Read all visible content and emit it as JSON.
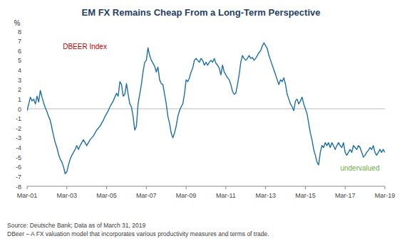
{
  "chart_data": {
    "type": "line",
    "title": "EM FX Remains Cheap From a Long-Term Perspective",
    "y_label": "%",
    "annotations": [
      {
        "text": "DBEER Index",
        "color": "#c00000"
      },
      {
        "text": "undervalued",
        "color": "#70ad47"
      }
    ],
    "source": "Source: Deutsche Bank; Data as of March 31, 2019\nDBeer – A FX valuation model that incorporates various productivity measures and terms of trade.",
    "color": "#1f6fa8",
    "grid": false,
    "ylim": [
      -8,
      8
    ],
    "yticks": [
      -8,
      -7,
      -6,
      -5,
      -4,
      -3,
      -2,
      -1,
      0,
      1,
      2,
      3,
      4,
      5,
      6,
      7,
      8
    ],
    "categories": [
      "Mar-01",
      null,
      null,
      null,
      null,
      null,
      null,
      null,
      null,
      null,
      null,
      null,
      null,
      null,
      null,
      null,
      null,
      null,
      null,
      null,
      null,
      null,
      null,
      null,
      "Mar-03",
      null,
      null,
      null,
      null,
      null,
      null,
      null,
      null,
      null,
      null,
      null,
      null,
      null,
      null,
      null,
      null,
      null,
      null,
      null,
      null,
      null,
      null,
      null,
      "Mar-05",
      null,
      null,
      null,
      null,
      null,
      null,
      null,
      null,
      null,
      null,
      null,
      null,
      null,
      null,
      null,
      null,
      null,
      null,
      null,
      null,
      null,
      null,
      null,
      "Mar-07",
      null,
      null,
      null,
      null,
      null,
      null,
      null,
      null,
      null,
      null,
      null,
      null,
      null,
      null,
      null,
      null,
      null,
      null,
      null,
      null,
      null,
      null,
      null,
      "Mar-09",
      null,
      null,
      null,
      null,
      null,
      null,
      null,
      null,
      null,
      null,
      null,
      null,
      null,
      null,
      null,
      null,
      null,
      null,
      null,
      null,
      null,
      null,
      null,
      "Mar-11",
      null,
      null,
      null,
      null,
      null,
      null,
      null,
      null,
      null,
      null,
      null,
      null,
      null,
      null,
      null,
      null,
      null,
      null,
      null,
      null,
      null,
      null,
      null,
      "Mar-13",
      null,
      null,
      null,
      null,
      null,
      null,
      null,
      null,
      null,
      null,
      null,
      null,
      null,
      null,
      null,
      null,
      null,
      null,
      null,
      null,
      null,
      null,
      null,
      "Mar-15",
      null,
      null,
      null,
      null,
      null,
      null,
      null,
      null,
      null,
      null,
      null,
      null,
      null,
      null,
      null,
      null,
      null,
      null,
      null,
      null,
      null,
      null,
      null,
      "Mar-17",
      null,
      null,
      null,
      null,
      null,
      null,
      null,
      null,
      null,
      null,
      null,
      null,
      null,
      null,
      null,
      null,
      null,
      null,
      null,
      null,
      null,
      null,
      null,
      "Mar-19"
    ],
    "values": [
      -0.2,
      0.5,
      1.2,
      0.8,
      1.0,
      0.5,
      1.3,
      0.7,
      1.9,
      1.2,
      0.6,
      0.1,
      -0.3,
      -0.8,
      -1.2,
      -2.0,
      -2.8,
      -3.5,
      -4.0,
      -4.7,
      -5.2,
      -5.5,
      -6.0,
      -6.7,
      -6.5,
      -5.8,
      -5.2,
      -4.8,
      -4.5,
      -4.2,
      -3.8,
      -4.2,
      -3.8,
      -3.5,
      -3.2,
      -3.5,
      -3.8,
      -3.5,
      -3.2,
      -3.0,
      -2.8,
      -2.5,
      -2.2,
      -2.0,
      -1.8,
      -1.5,
      -1.2,
      -0.8,
      -0.5,
      -0.2,
      0.2,
      0.5,
      0.8,
      1.2,
      1.6,
      1.3,
      2.8,
      2.5,
      1.3,
      1.5,
      2.6,
      1.5,
      0.5,
      0.2,
      -0.8,
      -2.2,
      -1.8,
      0.5,
      1.5,
      2.5,
      3.8,
      4.8,
      5.0,
      6.3,
      5.5,
      5.0,
      4.7,
      4.4,
      3.8,
      4.3,
      3.0,
      2.6,
      2.5,
      1.5,
      0.5,
      -0.8,
      -1.5,
      -2.5,
      -3.0,
      -2.5,
      -1.8,
      -0.8,
      -0.2,
      0.2,
      0.5,
      1.5,
      3.0,
      2.8,
      3.2,
      3.8,
      4.2,
      5.0,
      5.2,
      5.0,
      4.8,
      5.2,
      5.0,
      4.5,
      4.8,
      4.5,
      4.8,
      5.0,
      4.8,
      5.2,
      4.7,
      4.5,
      4.2,
      3.5,
      4.5,
      3.8,
      3.5,
      3.2,
      3.0,
      2.5,
      1.8,
      1.5,
      1.6,
      2.5,
      3.5,
      4.8,
      5.5,
      5.2,
      5.0,
      5.2,
      5.5,
      5.2,
      5.3,
      5.0,
      5.2,
      5.5,
      5.8,
      6.0,
      6.5,
      6.8,
      6.5,
      6.2,
      5.5,
      5.0,
      4.5,
      4.0,
      3.5,
      3.0,
      2.5,
      3.0,
      2.8,
      3.2,
      2.5,
      1.5,
      1.0,
      0.5,
      0.2,
      -0.2,
      0.8,
      1.0,
      0.5,
      0.8,
      1.2,
      0.5,
      0.0,
      -0.5,
      -1.5,
      -2.5,
      -3.2,
      -4.2,
      -4.8,
      -5.5,
      -5.8,
      -4.5,
      -3.8,
      -4.0,
      -3.5,
      -3.8,
      -3.5,
      -4.0,
      -3.5,
      -3.8,
      -4.2,
      -3.8,
      -3.5,
      -3.8,
      -4.0,
      -3.5,
      -4.5,
      -4.8,
      -4.5,
      -4.2,
      -4.5,
      -3.8,
      -4.0,
      -4.2,
      -3.8,
      -4.0,
      -4.5,
      -5.0,
      -4.8,
      -4.5,
      -4.3,
      -4.0,
      -4.2,
      -3.8,
      -4.5,
      -4.8,
      -4.5,
      -4.2,
      -4.5,
      -4.2,
      -4.5
    ]
  }
}
